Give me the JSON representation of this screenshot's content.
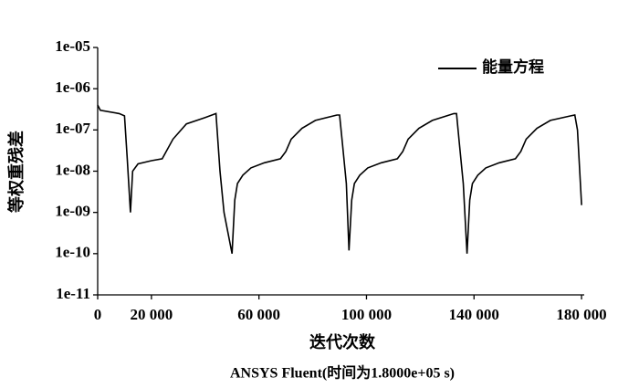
{
  "chart_data": {
    "type": "line",
    "title": "ANSYS Fluent(时间为1.8000e+05 s)",
    "xlabel": "迭代次数",
    "ylabel": "等权重残差",
    "x": [
      0,
      1000,
      8000,
      10000,
      11000,
      12200,
      13000,
      15000,
      20000,
      24000,
      28000,
      33000,
      40000,
      44000,
      45500,
      47000,
      50000,
      51000,
      52000,
      54000,
      57000,
      62000,
      68000,
      70000,
      72000,
      76000,
      81000,
      89000,
      90000,
      91000,
      92500,
      93500,
      94500,
      95500,
      97500,
      100500,
      105500,
      111500,
      113500,
      115500,
      119500,
      124500,
      132500,
      133500,
      134500,
      136000,
      137400,
      138400,
      139400,
      141400,
      144400,
      149400,
      155400,
      157400,
      159400,
      163400,
      168400,
      176000,
      177500,
      178500,
      180000
    ],
    "series": [
      {
        "name": "能量方程",
        "color": "#000000",
        "values": [
          4e-07,
          3e-07,
          2.5e-07,
          2.2e-07,
          2e-08,
          1e-09,
          1e-08,
          1.5e-08,
          1.8e-08,
          2e-08,
          6e-08,
          1.4e-07,
          2e-07,
          2.5e-07,
          1e-08,
          1e-09,
          1e-10,
          2e-09,
          5e-09,
          8e-09,
          1.2e-08,
          1.6e-08,
          2e-08,
          3e-08,
          6e-08,
          1.1e-07,
          1.7e-07,
          2.3e-07,
          2.3e-07,
          5e-08,
          5e-09,
          1.2e-10,
          2e-09,
          5e-09,
          8e-09,
          1.2e-08,
          1.6e-08,
          2e-08,
          3e-08,
          6e-08,
          1.1e-07,
          1.7e-07,
          2.5e-07,
          2.5e-07,
          5e-08,
          5e-09,
          1e-10,
          2e-09,
          5e-09,
          8e-09,
          1.2e-08,
          1.6e-08,
          2e-08,
          3e-08,
          6e-08,
          1.1e-07,
          1.7e-07,
          2.2e-07,
          2.3e-07,
          1e-07,
          1.5e-09
        ]
      }
    ],
    "xlim": [
      0,
      181000
    ],
    "xticks": [
      0,
      {
        "value": 20000,
        "label": "20 000"
      },
      {
        "value": 60000,
        "label": "60 000"
      },
      {
        "value": 100000,
        "label": "100 000"
      },
      {
        "value": 140000,
        "label": "140 000"
      },
      {
        "value": 180000,
        "label": "180 000"
      }
    ],
    "ylim": [
      1e-11,
      1e-05
    ],
    "yticks": [
      {
        "value": 1e-11,
        "label": "1e-11"
      },
      {
        "value": 1e-10,
        "label": "1e-10"
      },
      {
        "value": 1e-09,
        "label": "1e-09"
      },
      {
        "value": 1e-08,
        "label": "1e-08"
      },
      {
        "value": 1e-07,
        "label": "1e-07"
      },
      {
        "value": 1e-06,
        "label": "1e-06"
      },
      {
        "value": 1e-05,
        "label": "1e-05"
      }
    ],
    "yscale": "log",
    "grid": false,
    "legend": "upper right"
  }
}
